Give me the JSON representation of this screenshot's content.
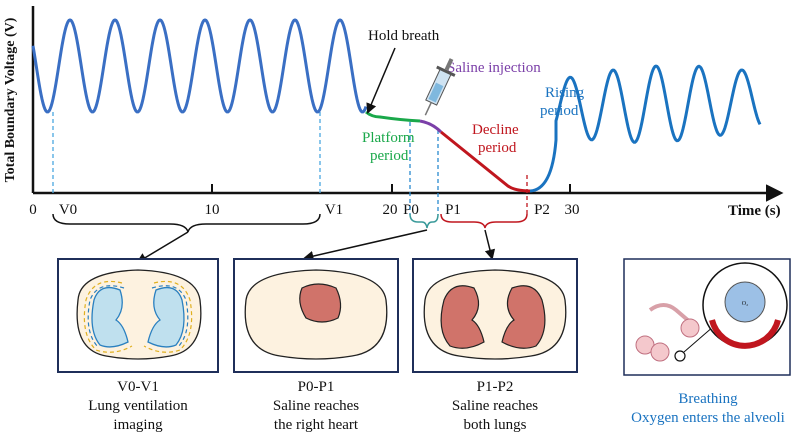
{
  "axes": {
    "y_label": "Total Boundary Voltage (V)",
    "x_label": "Time (s)",
    "ticks": [
      "0",
      "10",
      "20",
      "30"
    ]
  },
  "points": {
    "v0": "V0",
    "v1": "V1",
    "p0": "P0",
    "p1": "P1",
    "p2": "P2"
  },
  "annotations": {
    "hold": "Hold breath",
    "saline": "Saline injection",
    "platform": [
      "Platform",
      "period"
    ],
    "decline": [
      "Decline",
      "period"
    ],
    "rising": [
      "Rising",
      "period"
    ]
  },
  "panels": [
    {
      "lines": [
        "V0-V1",
        "Lung ventilation",
        "imaging"
      ]
    },
    {
      "lines": [
        "P0-P1",
        "Saline reaches",
        "the right heart"
      ]
    },
    {
      "lines": [
        "P1-P2",
        "Saline reaches",
        "both lungs"
      ]
    },
    {
      "lines": [
        "Breathing",
        "Oxygen enters the alveoli"
      ],
      "icon_label": "O₂"
    }
  ]
}
